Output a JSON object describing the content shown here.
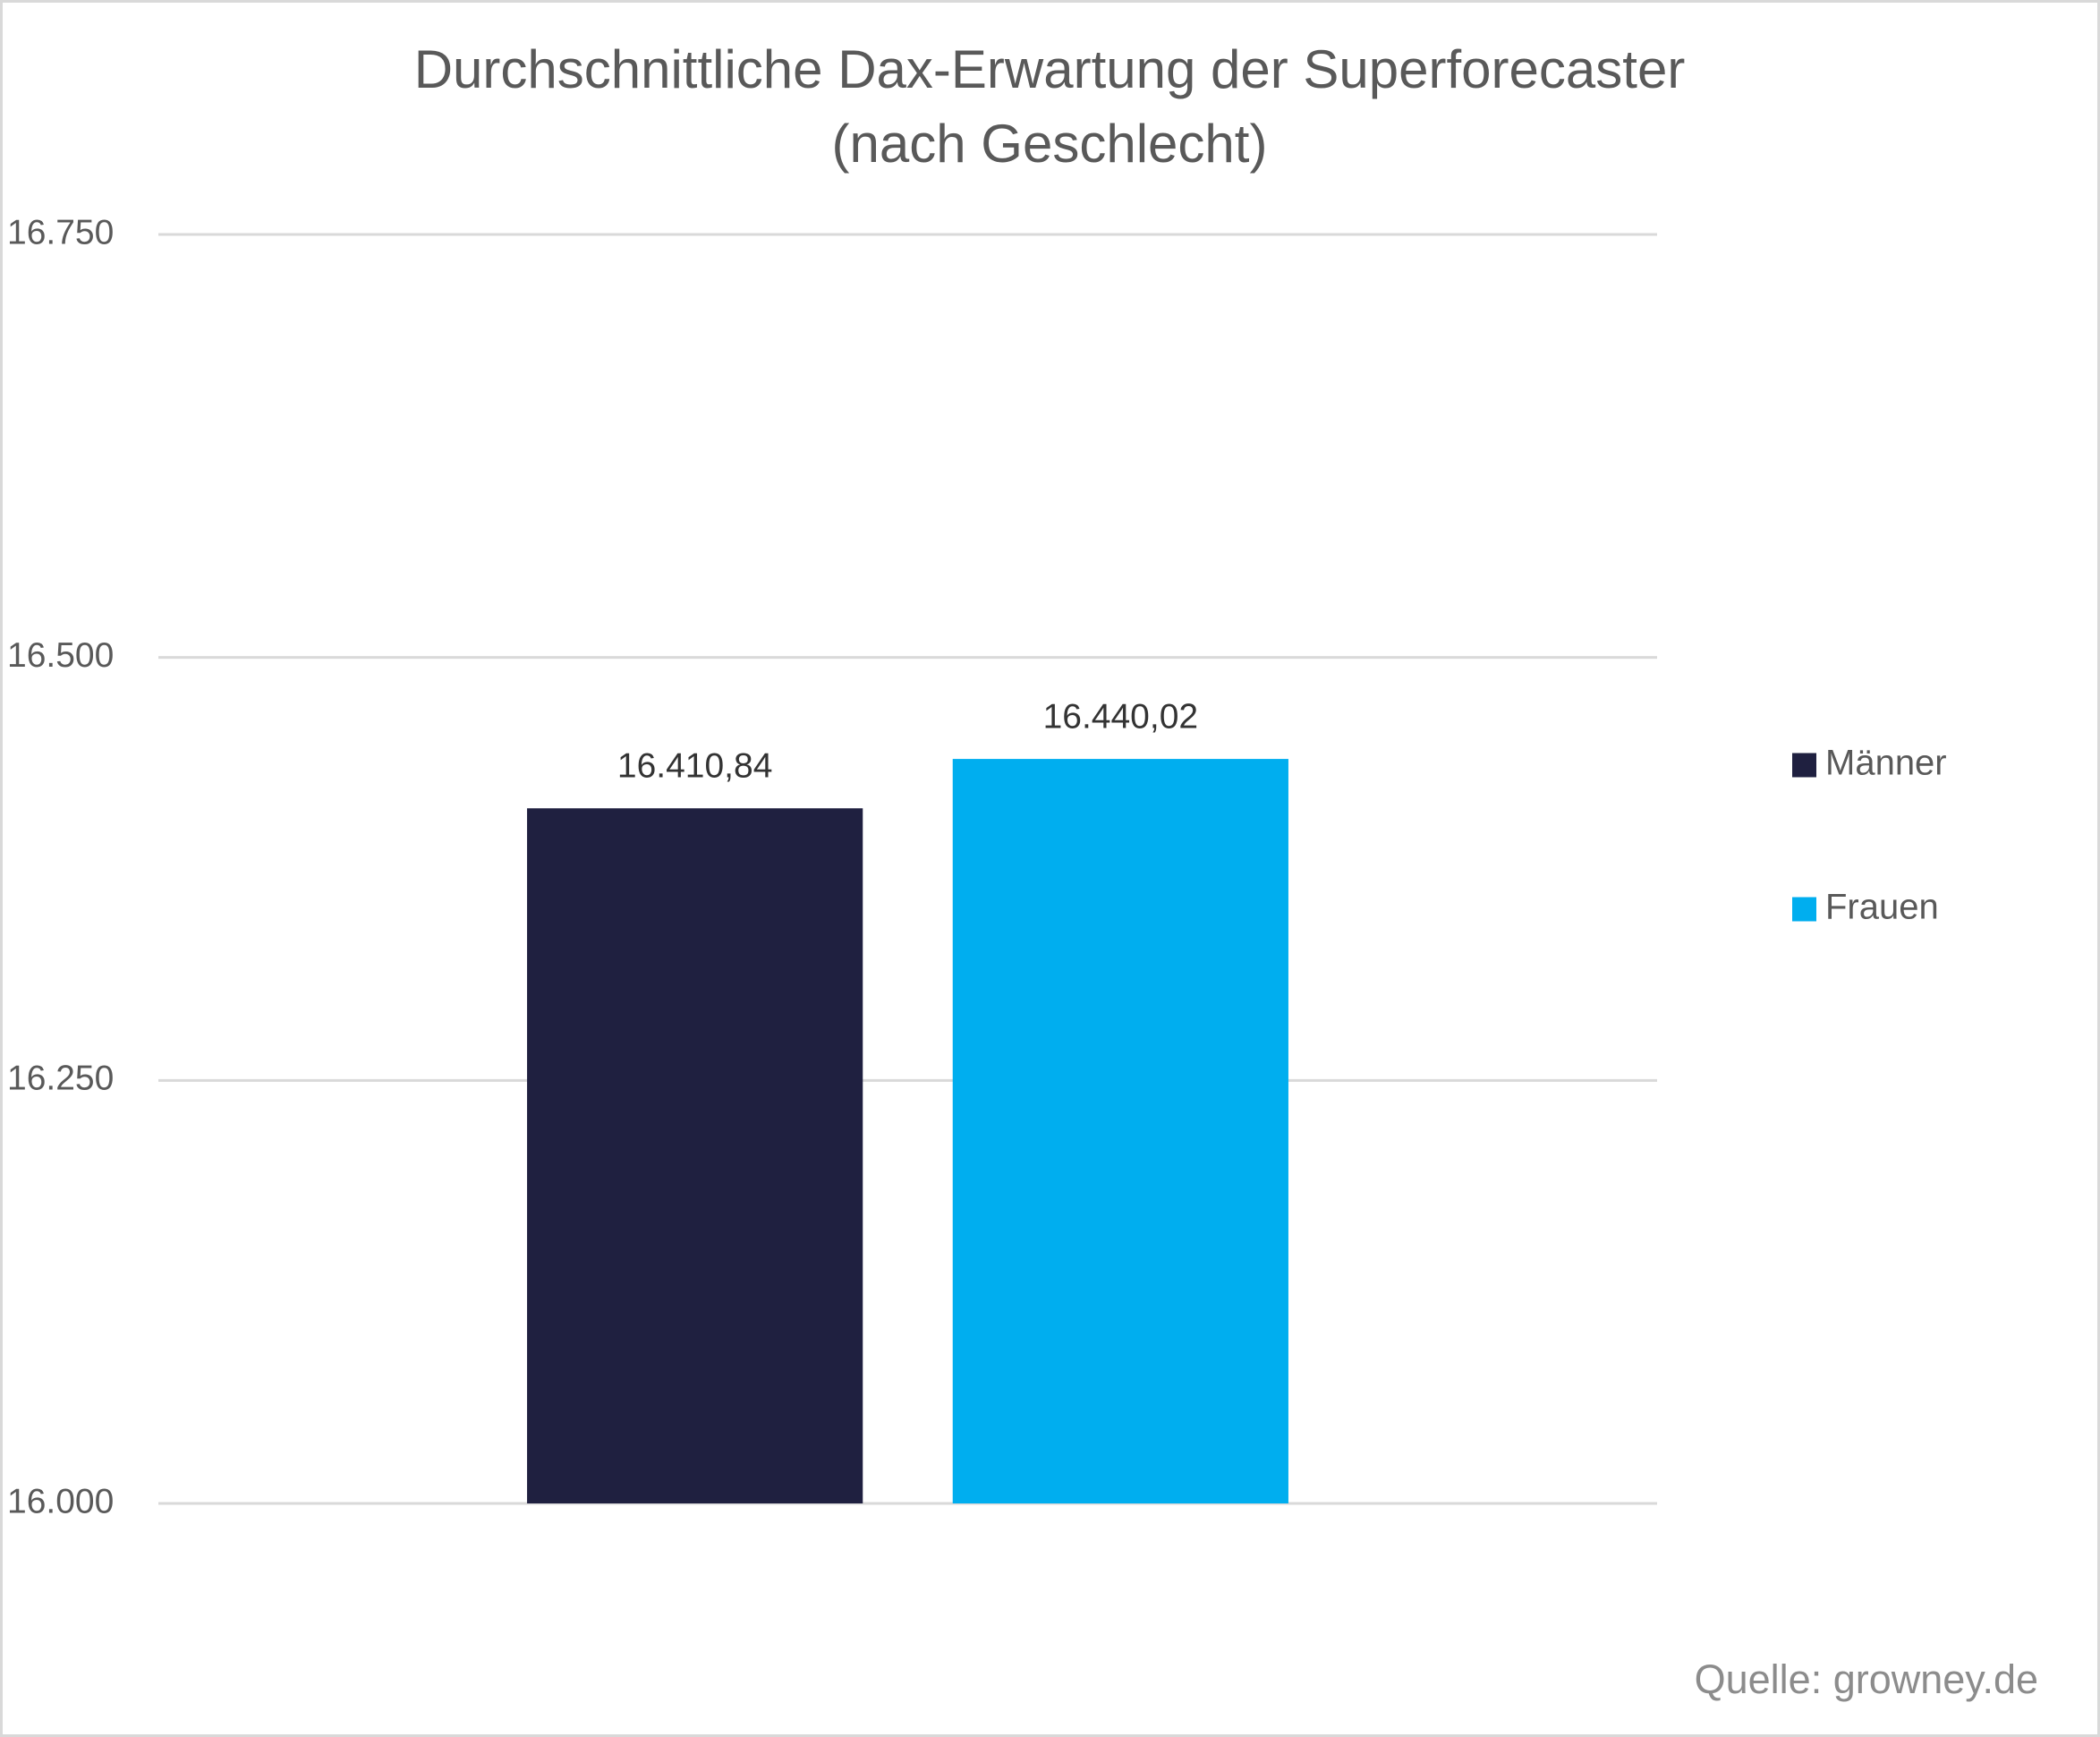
{
  "chart_data": {
    "type": "bar",
    "title": "Durchschnittliche Dax-Erwartung der Superforecaster",
    "subtitle": "(nach Geschlecht)",
    "categories": [
      null
    ],
    "series": [
      {
        "name": "Männer",
        "color": "#1f2040",
        "values": [
          16410.84
        ],
        "value_labels": [
          "16.410,84"
        ]
      },
      {
        "name": "Frauen",
        "color": "#00aeef",
        "values": [
          16440.02
        ],
        "value_labels": [
          "16.440,02"
        ]
      }
    ],
    "ylim": [
      16000,
      16750
    ],
    "yticks": [
      {
        "value": 16000,
        "label": "16.000"
      },
      {
        "value": 16250,
        "label": "16.250"
      },
      {
        "value": 16500,
        "label": "16.500"
      },
      {
        "value": 16750,
        "label": "16.750"
      }
    ],
    "grid": true,
    "legend": "right",
    "source": "Quelle: growney.de"
  }
}
